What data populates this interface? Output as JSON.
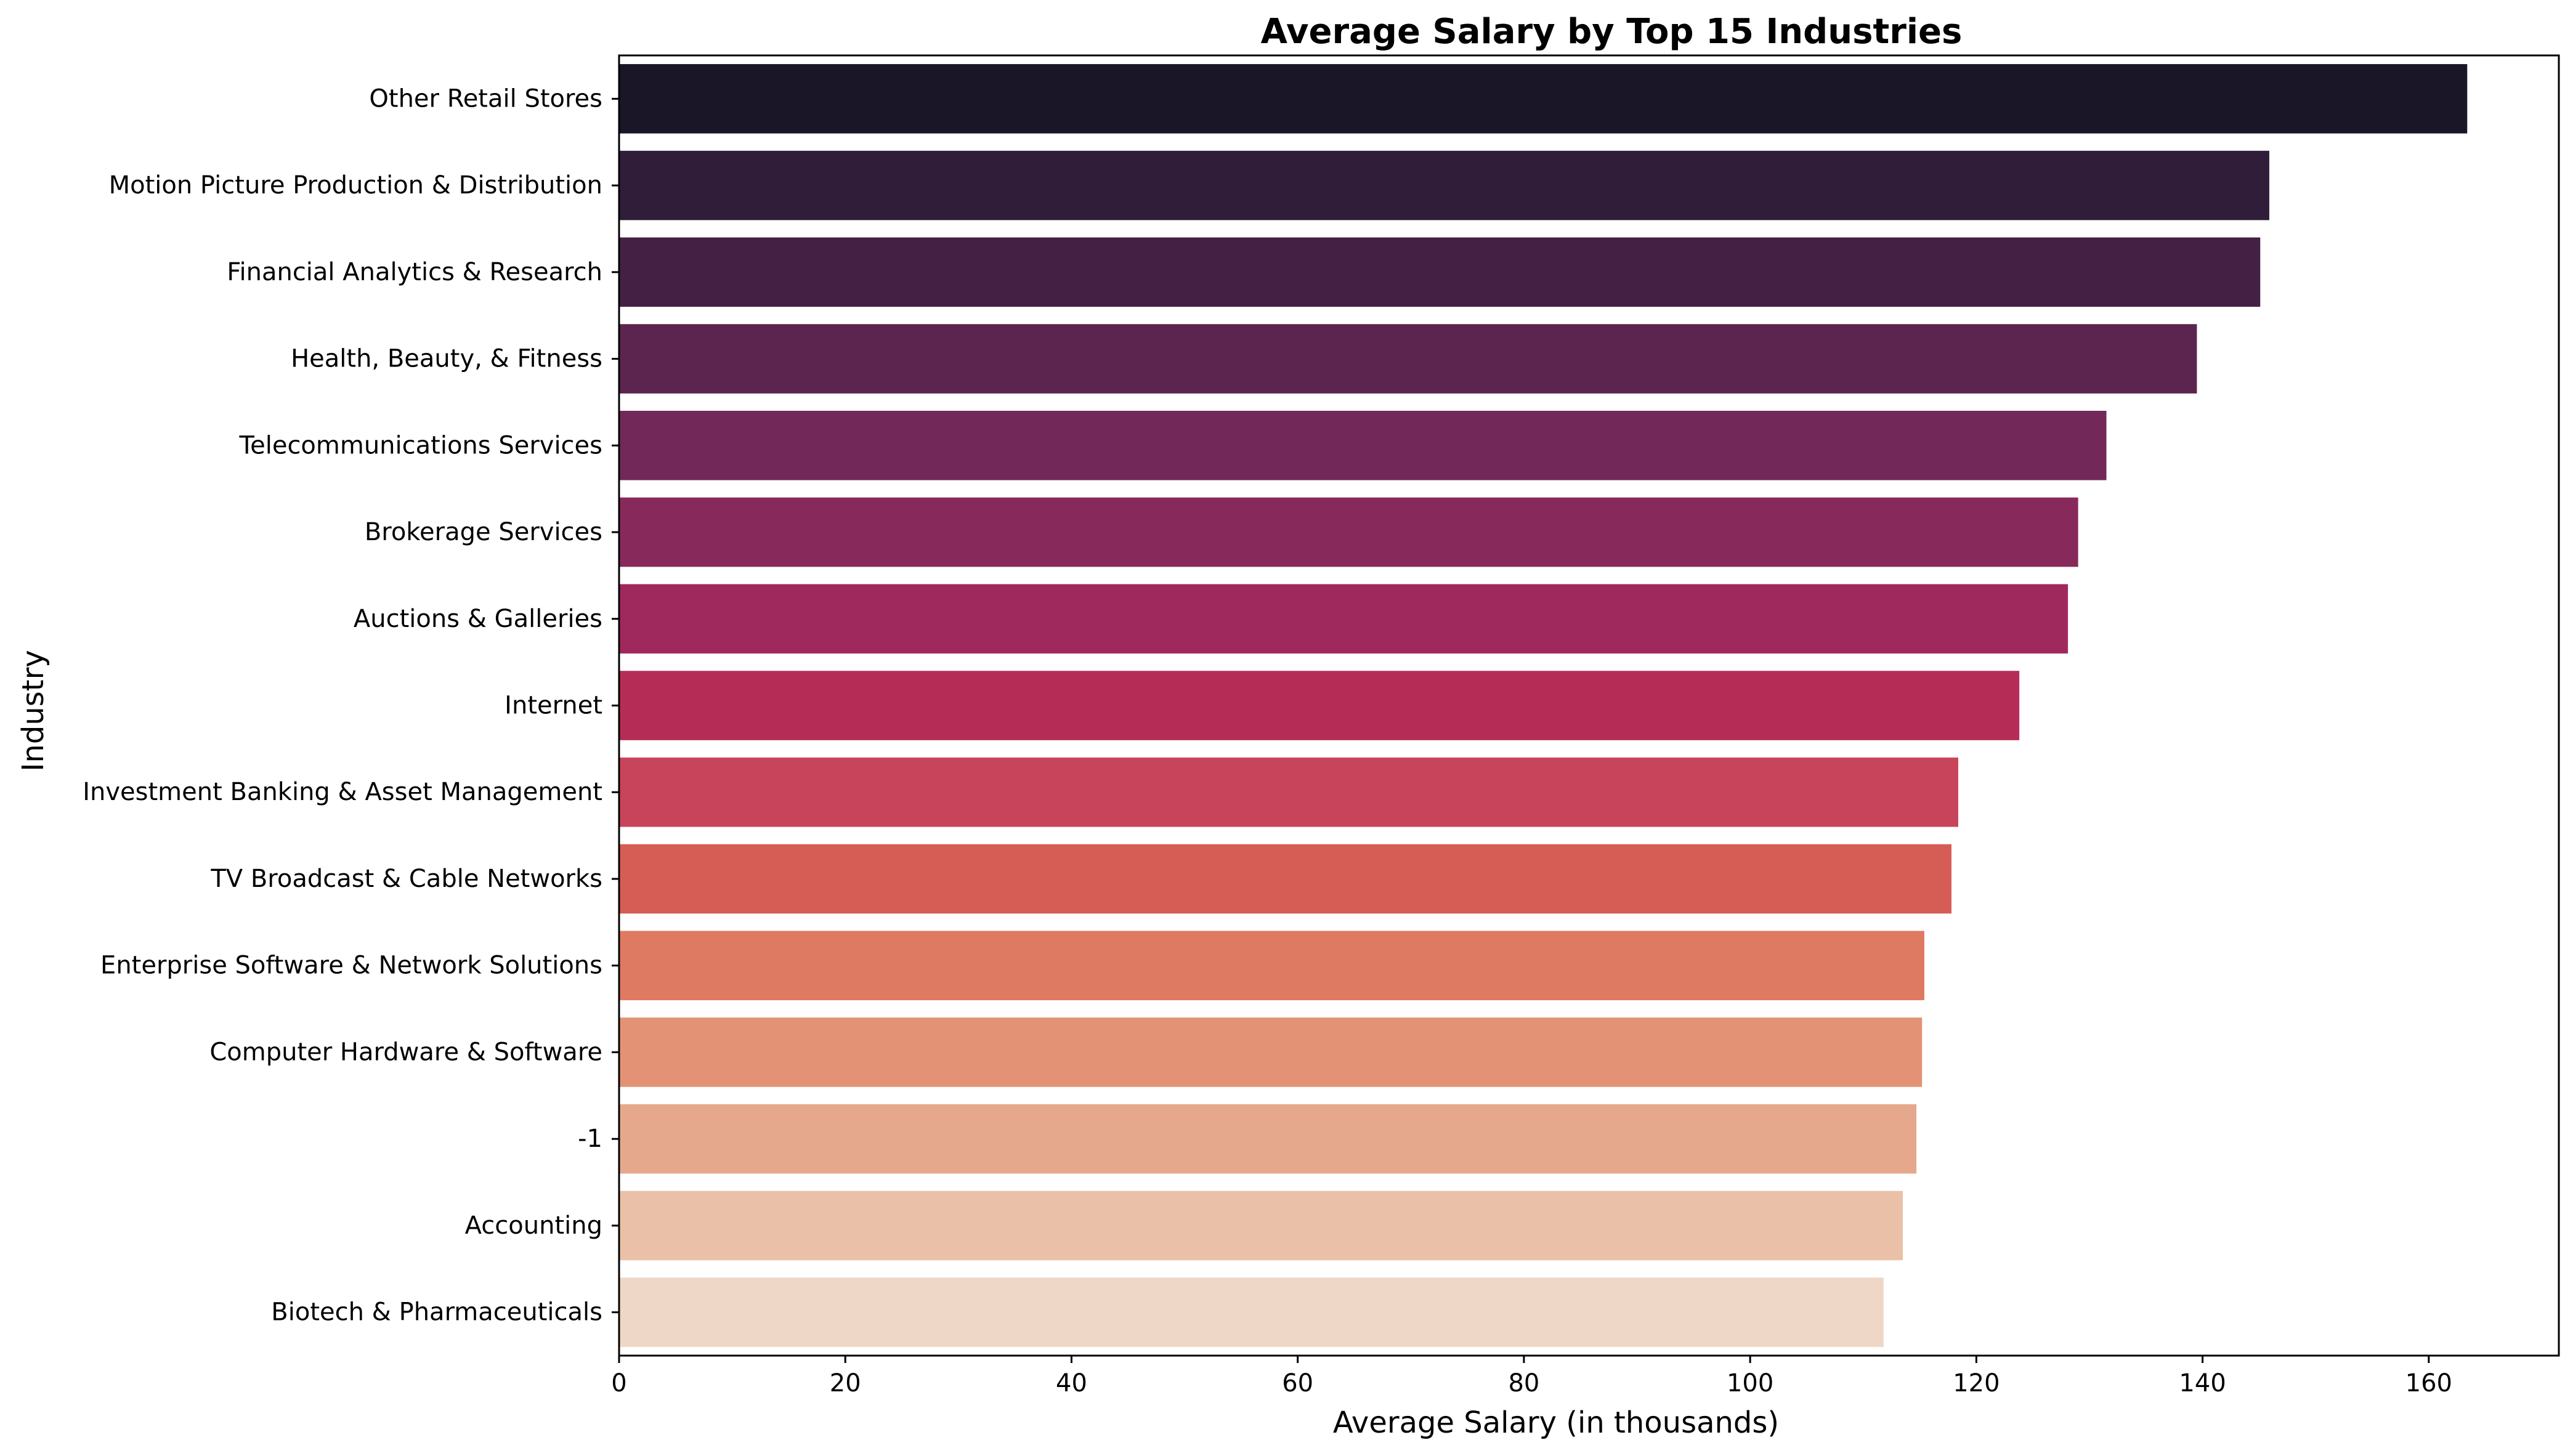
{
  "chart_data": {
    "type": "bar",
    "orientation": "horizontal",
    "title": "Average Salary by Top 15 Industries",
    "xlabel": "Average Salary (in thousands)",
    "ylabel": "Industry",
    "xlim": [
      0,
      171.5
    ],
    "xticks": [
      0,
      20,
      40,
      60,
      80,
      100,
      120,
      140,
      160
    ],
    "grid": false,
    "categories": [
      "Other Retail Stores",
      "Motion Picture Production & Distribution",
      "Financial Analytics & Research",
      "Health, Beauty, & Fitness",
      "Telecommunications Services",
      "Brokerage Services",
      "Auctions & Galleries",
      "Internet",
      "Investment Banking & Asset Management",
      "TV Broadcast & Cable Networks",
      "Enterprise Software & Network Solutions",
      "Computer Hardware & Software",
      "-1",
      "Accounting",
      "Biotech & Pharmaceuticals"
    ],
    "values": [
      163.4,
      145.9,
      145.1,
      139.5,
      131.5,
      129.0,
      128.1,
      123.8,
      118.4,
      117.8,
      115.4,
      115.2,
      114.7,
      113.5,
      111.8
    ],
    "colors": [
      "#1a1527",
      "#2f1d39",
      "#432044",
      "#5b254f",
      "#722858",
      "#88295b",
      "#9f295c",
      "#b52d57",
      "#c8445a",
      "#d65d55",
      "#df7a62",
      "#e39275",
      "#e6a88c",
      "#eac1a8",
      "#eed7c6"
    ]
  }
}
